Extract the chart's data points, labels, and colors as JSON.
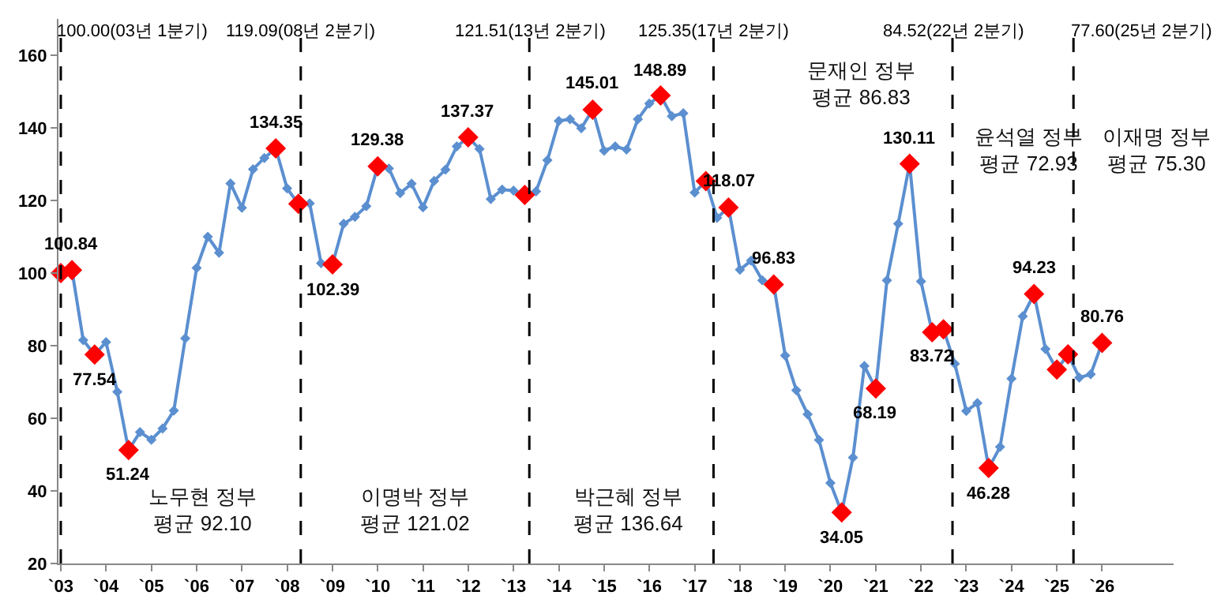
{
  "chart_data": {
    "type": "line",
    "x": [
      "2003-01",
      "2003-04",
      "2003-07",
      "2003-10",
      "2004-01",
      "2004-04",
      "2004-07",
      "2004-10",
      "2005-01",
      "2005-04",
      "2005-07",
      "2005-10",
      "2006-01",
      "2006-04",
      "2006-07",
      "2006-10",
      "2007-01",
      "2007-04",
      "2007-07",
      "2007-10",
      "2008-01",
      "2008-04",
      "2008-07",
      "2008-10",
      "2009-01",
      "2009-04",
      "2009-07",
      "2009-10",
      "2010-01",
      "2010-04",
      "2010-07",
      "2010-10",
      "2011-01",
      "2011-04",
      "2011-07",
      "2011-10",
      "2012-01",
      "2012-04",
      "2012-07",
      "2012-10",
      "2013-01",
      "2013-04",
      "2013-07",
      "2013-10",
      "2014-01",
      "2014-04",
      "2014-07",
      "2014-10",
      "2015-01",
      "2015-04",
      "2015-07",
      "2015-10",
      "2016-01",
      "2016-04",
      "2016-07",
      "2016-10",
      "2017-01",
      "2017-04",
      "2017-07",
      "2017-10",
      "2018-01",
      "2018-04",
      "2018-07",
      "2018-10",
      "2019-01",
      "2019-04",
      "2019-07",
      "2019-10",
      "2020-01",
      "2020-04",
      "2020-07",
      "2020-10",
      "2021-01",
      "2021-04",
      "2021-07",
      "2021-10",
      "2022-01",
      "2022-04",
      "2022-07",
      "2022-10",
      "2023-01",
      "2023-04",
      "2023-07",
      "2023-10",
      "2024-01",
      "2024-04",
      "2024-07",
      "2024-10",
      "2025-01",
      "2025-04",
      "2025-07",
      "2025-10",
      "2026-01"
    ],
    "series": [
      {
        "color": "#5b8fd0",
        "values": [
          100,
          100.84,
          81.5,
          77.54,
          81.0,
          67.3,
          51.24,
          56.2,
          54.1,
          57.2,
          62.1,
          82.0,
          101.4,
          110.0,
          105.6,
          124.7,
          118.0,
          128.6,
          131.7,
          134.35,
          123.3,
          119.09,
          119.2,
          102.7,
          102.39,
          113.6,
          115.5,
          118.4,
          129.38,
          128.8,
          122.0,
          124.6,
          118.1,
          125.4,
          128.5,
          134.9,
          137.37,
          134.2,
          120.4,
          123.0,
          122.7,
          121.51,
          122.5,
          131.1,
          141.9,
          142.4,
          139.9,
          145.01,
          133.7,
          134.9,
          134.0,
          142.4,
          146.7,
          148.89,
          143.2,
          144.0,
          122.2,
          125.35,
          115.2,
          118.07,
          100.9,
          103.4,
          98.0,
          96.83,
          77.3,
          67.7,
          61.1,
          54.0,
          42.2,
          34.05,
          49.2,
          74.4,
          68.19,
          98.0,
          113.6,
          130.11,
          97.7,
          83.72,
          84.52,
          75.0,
          62.0,
          64.2,
          46.28,
          52.1,
          70.9,
          88.1,
          94.23,
          79.1,
          73.4,
          77.6,
          71.2,
          72.1,
          80.76
        ]
      },
      {
        "type": "scatter",
        "color": "#ff0000",
        "x": [
          "2003-01",
          "2003-04",
          "2003-10",
          "2004-07",
          "2007-10",
          "2008-04",
          "2009-01",
          "2010-01",
          "2012-01",
          "2013-04",
          "2014-10",
          "2016-04",
          "2017-04",
          "2017-10",
          "2018-10",
          "2020-04",
          "2021-01",
          "2021-10",
          "2022-04",
          "2022-07",
          "2023-07",
          "2024-07",
          "2025-01",
          "2025-04",
          "2026-01"
        ],
        "values": [
          100,
          100.84,
          77.54,
          51.24,
          134.35,
          119.09,
          102.39,
          129.38,
          137.37,
          121.51,
          145.01,
          148.89,
          125.35,
          118.07,
          96.83,
          34.05,
          68.19,
          130.11,
          83.72,
          84.52,
          46.28,
          94.23,
          73.4,
          77.6,
          80.76
        ],
        "value_labels": [
          null,
          "100.84",
          "77.54",
          "51.24",
          "134.35",
          null,
          "102.39",
          "129.38",
          "137.37",
          null,
          "145.01",
          "148.89",
          null,
          "118.07",
          "96.83",
          "34.05",
          "68.19",
          "130.11",
          "83.72",
          null,
          "46.28",
          "94.23",
          null,
          null,
          "80.76"
        ]
      }
    ],
    "marker": "diamond",
    "xlim": [
      "2002-12-13",
      "2027-08-01"
    ],
    "xticks": [
      {
        "value": "2003",
        "label": "`03"
      },
      {
        "value": "2004",
        "label": "`04"
      },
      {
        "value": "2005",
        "label": "`05"
      },
      {
        "value": "2006",
        "label": "`06"
      },
      {
        "value": "2007",
        "label": "`07"
      },
      {
        "value": "2008",
        "label": "`08"
      },
      {
        "value": "2009",
        "label": "`09"
      },
      {
        "value": "2010",
        "label": "`10"
      },
      {
        "value": "2011",
        "label": "`11"
      },
      {
        "value": "2012",
        "label": "`12"
      },
      {
        "value": "2013",
        "label": "`13"
      },
      {
        "value": "2014",
        "label": "`14"
      },
      {
        "value": "2015",
        "label": "`15"
      },
      {
        "value": "2016",
        "label": "`16"
      },
      {
        "value": "2017",
        "label": "`17"
      },
      {
        "value": "2018",
        "label": "`18"
      },
      {
        "value": "2019",
        "label": "`19"
      },
      {
        "value": "2020",
        "label": "`20"
      },
      {
        "value": "2021",
        "label": "`21"
      },
      {
        "value": "2022",
        "label": "`22"
      },
      {
        "value": "2023",
        "label": "`23"
      },
      {
        "value": "2024",
        "label": "`24"
      },
      {
        "value": "2025",
        "label": "`25"
      },
      {
        "value": "2026",
        "label": "`26"
      }
    ],
    "ylim": [
      20,
      170
    ],
    "yticks": [
      20,
      40,
      60,
      80,
      100,
      120,
      140,
      160
    ],
    "ref_lines": [
      {
        "axis": "x",
        "value": "2003-01-01",
        "label": "100.00(03년 1분기)",
        "color": "#000000",
        "line_style": "dashed"
      },
      {
        "axis": "x",
        "value": "2008-04-20",
        "label": "119.09(08년 2분기)",
        "color": "#000000",
        "line_style": "dashed"
      },
      {
        "axis": "x",
        "value": "2013-05-08",
        "label": "121.51(13년 2분기)",
        "color": "#000000",
        "line_style": "dashed"
      },
      {
        "axis": "x",
        "value": "2017-06-02",
        "label": "125.35(17년 2분기)",
        "color": "#000000",
        "line_style": "dashed"
      },
      {
        "axis": "x",
        "value": "2022-09-12",
        "label": "84.52(22년 2분기)",
        "color": "#000000",
        "line_style": "dashed"
      },
      {
        "axis": "x",
        "value": "2025-05-15",
        "label": "77.60(25년 2분기)",
        "color": "#000000",
        "line_style": "dashed"
      }
    ],
    "annotations": [
      "노무현 정부\n평균 92.10",
      "이명박 정부\n평균 121.02",
      "박근혜 정부\n평균 136.64",
      "문재인 정부\n평균 86.83",
      "윤석열 정부\n평균 72.93",
      "이재명 정부\n평균 75.30"
    ]
  }
}
